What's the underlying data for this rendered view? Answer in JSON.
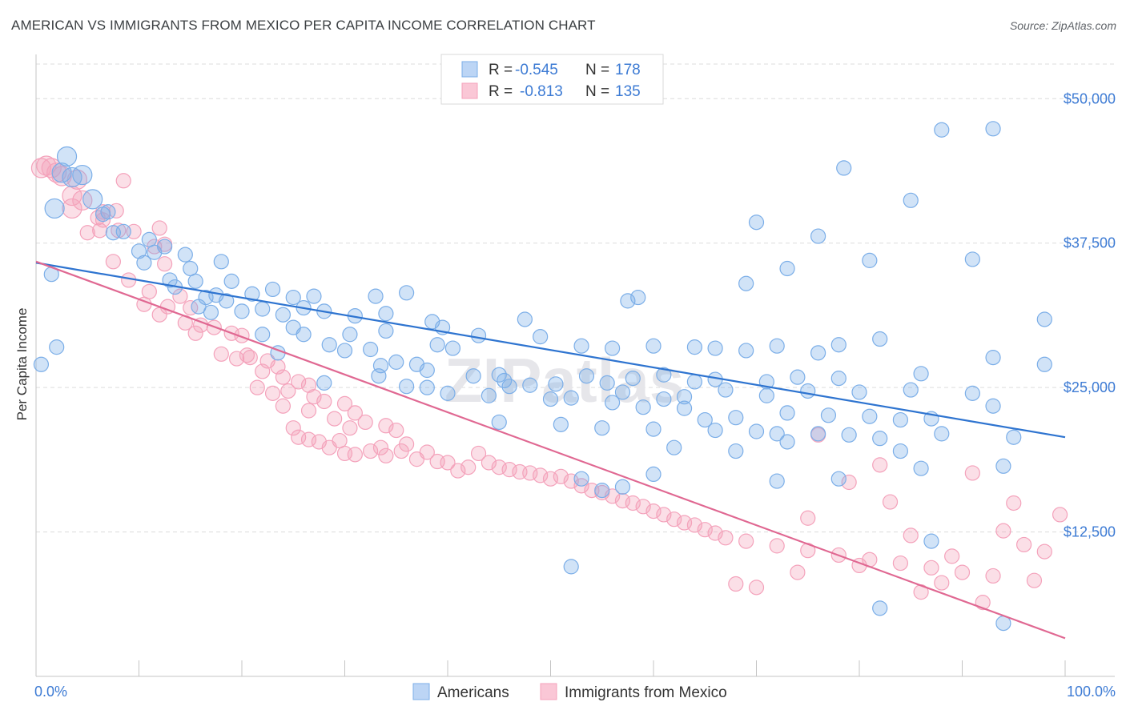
{
  "title": "AMERICAN VS IMMIGRANTS FROM MEXICO PER CAPITA INCOME CORRELATION CHART",
  "source": "Source: ZipAtlas.com",
  "colors": {
    "americans": "#7baee8",
    "americans_line": "#2e74d0",
    "mexico": "#f4a2bb",
    "mexico_line": "#e06892",
    "axis_text": "#3d7bd4"
  },
  "chart_data": {
    "type": "scatter",
    "title": "AMERICAN VS IMMIGRANTS FROM MEXICO PER CAPITA INCOME CORRELATION CHART",
    "xlabel": "",
    "ylabel": "Per Capita Income",
    "xlim": [
      0,
      100
    ],
    "ylim": [
      0,
      53000
    ],
    "x_tick_labels": [
      "0.0%",
      "100.0%"
    ],
    "y_ticks": [
      12500,
      25000,
      37500,
      50000
    ],
    "y_tick_labels": [
      "$12,500",
      "$25,000",
      "$37,500",
      "$50,000"
    ],
    "grid": "horizontal dashed",
    "legend_position": "top-center",
    "stats": [
      {
        "r_label": "R =",
        "r": "-0.545",
        "n_label": "N =",
        "n": "178"
      },
      {
        "r_label": "R =",
        "r": "-0.813",
        "n_label": "N =",
        "n": "135"
      }
    ],
    "series": [
      {
        "name": "Americans",
        "trend": {
          "x": [
            0,
            100
          ],
          "y": [
            35800,
            20700
          ]
        },
        "points": [
          [
            3,
            45000
          ],
          [
            2.5,
            43600
          ],
          [
            4.5,
            43400
          ],
          [
            3.5,
            43200
          ],
          [
            1.8,
            40500
          ],
          [
            5.5,
            41300
          ],
          [
            6.5,
            40000
          ],
          [
            7,
            40200
          ],
          [
            8.5,
            38500
          ],
          [
            7.5,
            38400
          ],
          [
            11,
            37800
          ],
          [
            12.5,
            37200
          ],
          [
            10,
            36800
          ],
          [
            11.5,
            36700
          ],
          [
            14.5,
            36500
          ],
          [
            10.5,
            35800
          ],
          [
            15,
            35300
          ],
          [
            18,
            35900
          ],
          [
            1.5,
            34800
          ],
          [
            13,
            34300
          ],
          [
            13.5,
            33700
          ],
          [
            15.5,
            34200
          ],
          [
            19,
            34200
          ],
          [
            18.5,
            32500
          ],
          [
            23,
            33500
          ],
          [
            21,
            33100
          ],
          [
            16.5,
            32800
          ],
          [
            17.5,
            33000
          ],
          [
            27,
            32900
          ],
          [
            25,
            32800
          ],
          [
            33,
            32900
          ],
          [
            36,
            33200
          ],
          [
            15.8,
            32000
          ],
          [
            22,
            31800
          ],
          [
            26,
            31900
          ],
          [
            28,
            31600
          ],
          [
            34,
            31400
          ],
          [
            17,
            31500
          ],
          [
            20,
            31600
          ],
          [
            24,
            31300
          ],
          [
            31,
            31200
          ],
          [
            38.5,
            30700
          ],
          [
            39.5,
            30200
          ],
          [
            47.5,
            30900
          ],
          [
            57.5,
            32500
          ],
          [
            58.5,
            32800
          ],
          [
            69,
            34000
          ],
          [
            73,
            35300
          ],
          [
            81,
            36000
          ],
          [
            76,
            38100
          ],
          [
            70,
            39300
          ],
          [
            85,
            41200
          ],
          [
            78.5,
            44000
          ],
          [
            88,
            47300
          ],
          [
            93,
            47400
          ],
          [
            91,
            36100
          ],
          [
            98,
            30900
          ],
          [
            2,
            28500
          ],
          [
            0.5,
            27000
          ],
          [
            23.5,
            28000
          ],
          [
            30,
            28200
          ],
          [
            32.5,
            28300
          ],
          [
            28.5,
            28700
          ],
          [
            22,
            29600
          ],
          [
            25,
            30200
          ],
          [
            26,
            29600
          ],
          [
            30.5,
            29600
          ],
          [
            34,
            29900
          ],
          [
            39,
            28700
          ],
          [
            40.5,
            28400
          ],
          [
            43,
            29500
          ],
          [
            49,
            29400
          ],
          [
            53,
            28600
          ],
          [
            56,
            28400
          ],
          [
            60,
            28600
          ],
          [
            64,
            28500
          ],
          [
            66,
            28400
          ],
          [
            69,
            28200
          ],
          [
            72,
            28600
          ],
          [
            76,
            28000
          ],
          [
            78,
            28700
          ],
          [
            82,
            29200
          ],
          [
            93,
            27600
          ],
          [
            98,
            27000
          ],
          [
            33.5,
            26900
          ],
          [
            35,
            27200
          ],
          [
            37,
            27000
          ],
          [
            38,
            26500
          ],
          [
            33.3,
            26000
          ],
          [
            42.5,
            26000
          ],
          [
            45,
            26100
          ],
          [
            45.5,
            25600
          ],
          [
            48,
            25200
          ],
          [
            50.5,
            25300
          ],
          [
            53.5,
            26000
          ],
          [
            55.5,
            25400
          ],
          [
            58,
            25800
          ],
          [
            61,
            26100
          ],
          [
            64,
            25500
          ],
          [
            66,
            25700
          ],
          [
            71,
            25500
          ],
          [
            74,
            25900
          ],
          [
            78,
            25800
          ],
          [
            86,
            26200
          ],
          [
            28,
            25400
          ],
          [
            36,
            25100
          ],
          [
            38,
            25000
          ],
          [
            46,
            25100
          ],
          [
            57,
            24600
          ],
          [
            61,
            24000
          ],
          [
            63,
            24200
          ],
          [
            67,
            24800
          ],
          [
            71,
            24300
          ],
          [
            75,
            24700
          ],
          [
            80,
            24600
          ],
          [
            85,
            24800
          ],
          [
            91,
            24500
          ],
          [
            93,
            23400
          ],
          [
            40,
            24500
          ],
          [
            44,
            24300
          ],
          [
            50,
            24000
          ],
          [
            52,
            24100
          ],
          [
            56,
            23700
          ],
          [
            59,
            23300
          ],
          [
            63,
            23200
          ],
          [
            65,
            22200
          ],
          [
            68,
            22400
          ],
          [
            73,
            22800
          ],
          [
            77,
            22600
          ],
          [
            81,
            22500
          ],
          [
            84,
            22200
          ],
          [
            87,
            22300
          ],
          [
            45,
            22000
          ],
          [
            51,
            21800
          ],
          [
            55,
            21500
          ],
          [
            60,
            21400
          ],
          [
            66,
            21300
          ],
          [
            70,
            21200
          ],
          [
            72,
            21000
          ],
          [
            76,
            21000
          ],
          [
            79,
            20900
          ],
          [
            82,
            20600
          ],
          [
            88,
            21000
          ],
          [
            95,
            20700
          ],
          [
            62,
            19800
          ],
          [
            68,
            19500
          ],
          [
            73,
            20300
          ],
          [
            84,
            19500
          ],
          [
            86,
            18000
          ],
          [
            94,
            18200
          ],
          [
            53,
            17100
          ],
          [
            57,
            16400
          ],
          [
            55,
            16100
          ],
          [
            60,
            17500
          ],
          [
            72,
            16900
          ],
          [
            78,
            17100
          ],
          [
            87,
            11700
          ],
          [
            52,
            9500
          ],
          [
            82,
            5900
          ],
          [
            94,
            4600
          ]
        ]
      },
      {
        "name": "Immigrants from Mexico",
        "trend": {
          "x": [
            0,
            100
          ],
          "y": [
            35900,
            3300
          ]
        },
        "points": [
          [
            0.5,
            44000
          ],
          [
            1,
            44200
          ],
          [
            1.5,
            44000
          ],
          [
            2,
            43600
          ],
          [
            2.5,
            43300
          ],
          [
            4,
            43000
          ],
          [
            8.5,
            42900
          ],
          [
            3.5,
            41600
          ],
          [
            4.5,
            41200
          ],
          [
            3.5,
            40500
          ],
          [
            6.5,
            40200
          ],
          [
            7.8,
            40300
          ],
          [
            6,
            39700
          ],
          [
            6.5,
            39500
          ],
          [
            12,
            38800
          ],
          [
            5,
            38400
          ],
          [
            6.2,
            38600
          ],
          [
            8,
            38600
          ],
          [
            9.5,
            38500
          ],
          [
            12.5,
            37400
          ],
          [
            11.5,
            37200
          ],
          [
            7.5,
            35900
          ],
          [
            12.5,
            35700
          ],
          [
            9,
            34300
          ],
          [
            11,
            33300
          ],
          [
            14,
            32900
          ],
          [
            10.5,
            32200
          ],
          [
            12.8,
            32000
          ],
          [
            15,
            31900
          ],
          [
            12,
            31300
          ],
          [
            14.5,
            30600
          ],
          [
            16,
            30400
          ],
          [
            17.3,
            30200
          ],
          [
            15.5,
            29700
          ],
          [
            19,
            29700
          ],
          [
            20,
            29500
          ],
          [
            20.5,
            27800
          ],
          [
            18,
            27900
          ],
          [
            19.5,
            27500
          ],
          [
            22.5,
            27300
          ],
          [
            20.8,
            27600
          ],
          [
            23.5,
            26800
          ],
          [
            22,
            26400
          ],
          [
            24,
            25900
          ],
          [
            25.5,
            25500
          ],
          [
            26.5,
            25200
          ],
          [
            21.5,
            25000
          ],
          [
            23,
            24500
          ],
          [
            24.5,
            24700
          ],
          [
            27,
            24200
          ],
          [
            28,
            23800
          ],
          [
            24,
            23400
          ],
          [
            26.5,
            23000
          ],
          [
            30,
            23600
          ],
          [
            31,
            22800
          ],
          [
            29,
            22300
          ],
          [
            30.5,
            21500
          ],
          [
            32,
            22000
          ],
          [
            34,
            21700
          ],
          [
            35,
            21300
          ],
          [
            25,
            21500
          ],
          [
            25.5,
            20700
          ],
          [
            26.5,
            20500
          ],
          [
            27.5,
            20300
          ],
          [
            28.5,
            19800
          ],
          [
            29.5,
            20400
          ],
          [
            30,
            19300
          ],
          [
            31,
            19200
          ],
          [
            32.5,
            19500
          ],
          [
            33.5,
            19800
          ],
          [
            34,
            19100
          ],
          [
            36,
            20100
          ],
          [
            35.5,
            19500
          ],
          [
            37,
            18800
          ],
          [
            38,
            19400
          ],
          [
            39,
            18600
          ],
          [
            40,
            18500
          ],
          [
            41,
            17800
          ],
          [
            42,
            18100
          ],
          [
            43,
            19300
          ],
          [
            44,
            18500
          ],
          [
            45,
            18100
          ],
          [
            46,
            17900
          ],
          [
            47,
            17700
          ],
          [
            48,
            17600
          ],
          [
            49,
            17400
          ],
          [
            50,
            17100
          ],
          [
            51,
            17300
          ],
          [
            52,
            16900
          ],
          [
            53,
            16500
          ],
          [
            54,
            16100
          ],
          [
            55,
            15900
          ],
          [
            56,
            15600
          ],
          [
            57,
            15200
          ],
          [
            58,
            15000
          ],
          [
            59,
            14700
          ],
          [
            60,
            14300
          ],
          [
            61,
            14000
          ],
          [
            62,
            13600
          ],
          [
            63,
            13300
          ],
          [
            64,
            13100
          ],
          [
            65,
            12700
          ],
          [
            66,
            12400
          ],
          [
            67,
            12000
          ],
          [
            69,
            11700
          ],
          [
            72,
            11300
          ],
          [
            75,
            10900
          ],
          [
            78,
            10500
          ],
          [
            81,
            10100
          ],
          [
            84,
            9800
          ],
          [
            87,
            9400
          ],
          [
            90,
            9000
          ],
          [
            93,
            8700
          ],
          [
            97,
            8300
          ],
          [
            99.5,
            14000
          ],
          [
            96,
            11400
          ],
          [
            91,
            17600
          ],
          [
            89,
            10400
          ],
          [
            83,
            15100
          ],
          [
            85,
            12200
          ],
          [
            79,
            16800
          ],
          [
            80,
            9600
          ],
          [
            74,
            9000
          ],
          [
            70,
            7700
          ],
          [
            68,
            8000
          ],
          [
            75,
            13700
          ],
          [
            88,
            8100
          ],
          [
            92,
            6400
          ],
          [
            86,
            7300
          ],
          [
            94,
            12600
          ],
          [
            98,
            10800
          ],
          [
            76,
            20900
          ],
          [
            82,
            18300
          ],
          [
            95,
            15000
          ]
        ]
      }
    ]
  },
  "legend_bottom": [
    "Americans",
    "Immigrants from Mexico"
  ],
  "watermark": "ZIPatlas"
}
